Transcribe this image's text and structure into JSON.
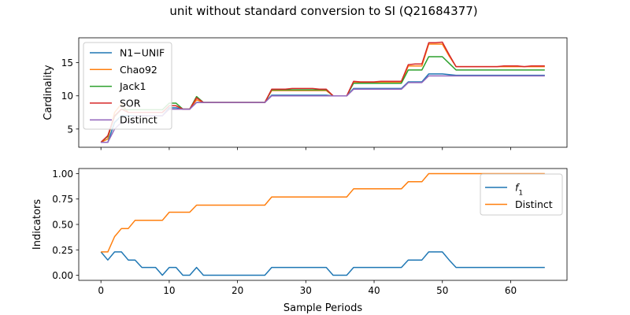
{
  "figure": {
    "title": "unit without standard conversion to SI (Q21684377)"
  },
  "colors": {
    "blue": "#1f77b4",
    "orange": "#ff7f0e",
    "green": "#2ca02c",
    "red": "#d62728",
    "purple": "#9467bd"
  },
  "chart_data": [
    {
      "type": "line",
      "ylabel": "Cardinality",
      "xlim": [
        -3.25,
        68.25
      ],
      "ylim": [
        2.25,
        18.75
      ],
      "xticks": [
        0,
        10,
        20,
        30,
        40,
        50,
        60
      ],
      "yticks": [
        5,
        10,
        15
      ],
      "show_xticklabels": false,
      "grid": false,
      "legend": "upper left",
      "series": [
        {
          "name": "N1−UNIF",
          "color": "#1f77b4",
          "x": [
            0,
            1,
            2,
            3,
            4,
            5,
            6,
            7,
            8,
            9,
            10,
            11,
            12,
            13,
            14,
            15,
            16,
            17,
            18,
            19,
            20,
            21,
            22,
            23,
            24,
            25,
            26,
            27,
            28,
            29,
            30,
            31,
            32,
            33,
            34,
            35,
            36,
            37,
            38,
            39,
            40,
            41,
            42,
            43,
            44,
            45,
            46,
            47,
            48,
            49,
            50,
            51,
            52,
            53,
            54,
            55,
            56,
            57,
            58,
            59,
            60,
            61,
            62,
            63,
            64,
            65
          ],
          "y": [
            3,
            3,
            6,
            7,
            7,
            7,
            7,
            7,
            7,
            7,
            8.2,
            8.2,
            8,
            8,
            9,
            9,
            9,
            9,
            9,
            9,
            9,
            9,
            9,
            9,
            9,
            10.1,
            10.1,
            10.1,
            10.1,
            10.1,
            10.1,
            10.1,
            10.1,
            10.1,
            10,
            10,
            10,
            11.1,
            11.1,
            11.1,
            11.1,
            11.1,
            11.1,
            11.1,
            11.1,
            12.1,
            12.1,
            12.1,
            13.3,
            13.3,
            13.3,
            13.2,
            13.1,
            13.1,
            13.1,
            13.1,
            13.1,
            13.1,
            13.1,
            13.1,
            13.1,
            13.1,
            13.1,
            13.1,
            13.1,
            13.1
          ]
        },
        {
          "name": "Chao92",
          "color": "#ff7f0e",
          "x": [
            0,
            1,
            2,
            3,
            4,
            5,
            6,
            7,
            8,
            9,
            10,
            11,
            12,
            13,
            14,
            15,
            16,
            17,
            18,
            19,
            20,
            21,
            22,
            23,
            24,
            25,
            26,
            27,
            28,
            29,
            30,
            31,
            32,
            33,
            34,
            35,
            36,
            37,
            38,
            39,
            40,
            41,
            42,
            43,
            44,
            45,
            46,
            47,
            48,
            49,
            50,
            51,
            52,
            53,
            54,
            55,
            56,
            57,
            58,
            59,
            60,
            61,
            62,
            63,
            64,
            65
          ],
          "y": [
            3,
            3.5,
            7.5,
            8.8,
            7.5,
            7.5,
            7.5,
            7.5,
            7.5,
            7.5,
            8.5,
            8.5,
            8,
            8,
            9.4,
            9,
            9,
            9,
            9,
            9,
            9,
            9,
            9,
            9,
            9,
            10.8,
            10.8,
            10.8,
            10.8,
            10.8,
            10.8,
            10.8,
            10.8,
            10.8,
            10,
            10,
            10,
            12,
            12,
            12,
            12,
            12,
            12,
            12,
            12,
            14.5,
            14.5,
            14.5,
            17.8,
            17.8,
            17.8,
            16,
            14.4,
            14.4,
            14.4,
            14.4,
            14.4,
            14.4,
            14.4,
            14.4,
            14.4,
            14.4,
            14.4,
            14.4,
            14.4,
            14.4
          ]
        },
        {
          "name": "Jack1",
          "color": "#2ca02c",
          "x": [
            0,
            1,
            2,
            3,
            4,
            5,
            6,
            7,
            8,
            9,
            10,
            11,
            12,
            13,
            14,
            15,
            16,
            17,
            18,
            19,
            20,
            21,
            22,
            23,
            24,
            25,
            26,
            27,
            28,
            29,
            30,
            31,
            32,
            33,
            34,
            35,
            36,
            37,
            38,
            39,
            40,
            41,
            42,
            43,
            44,
            45,
            46,
            47,
            48,
            49,
            50,
            51,
            52,
            53,
            54,
            55,
            56,
            57,
            58,
            59,
            60,
            61,
            62,
            63,
            64,
            65
          ],
          "y": [
            3,
            3.9,
            6.9,
            8,
            7.9,
            7.9,
            7.9,
            7.9,
            7.9,
            7.9,
            8.9,
            8.9,
            8,
            8,
            9.9,
            9,
            9,
            9,
            9,
            9,
            9,
            9,
            9,
            9,
            9,
            10.9,
            10.9,
            10.9,
            10.9,
            10.9,
            10.9,
            10.9,
            10.9,
            10.9,
            10,
            10,
            10,
            11.9,
            11.9,
            11.9,
            11.9,
            11.9,
            11.9,
            11.9,
            11.9,
            13.9,
            13.9,
            13.9,
            15.9,
            15.9,
            15.9,
            14.9,
            13.9,
            13.9,
            13.9,
            13.9,
            13.9,
            13.9,
            13.9,
            13.9,
            13.9,
            13.9,
            13.9,
            13.9,
            13.9,
            13.9
          ]
        },
        {
          "name": "SOR",
          "color": "#d62728",
          "x": [
            0,
            1,
            2,
            3,
            4,
            5,
            6,
            7,
            8,
            9,
            10,
            11,
            12,
            13,
            14,
            15,
            16,
            17,
            18,
            19,
            20,
            21,
            22,
            23,
            24,
            25,
            26,
            27,
            28,
            29,
            30,
            31,
            32,
            33,
            34,
            35,
            36,
            37,
            38,
            39,
            40,
            41,
            42,
            43,
            44,
            45,
            46,
            47,
            48,
            49,
            50,
            51,
            52,
            53,
            54,
            55,
            56,
            57,
            58,
            59,
            60,
            61,
            62,
            63,
            64,
            65
          ],
          "y": [
            3,
            4,
            7,
            8,
            7.5,
            7.5,
            7.5,
            7.5,
            7.5,
            7.5,
            8.5,
            8.5,
            8,
            8,
            9.7,
            9,
            9,
            9,
            9,
            9,
            9,
            9,
            9,
            9,
            9,
            11,
            11,
            11,
            11.1,
            11.1,
            11.1,
            11.1,
            11,
            11,
            10,
            10,
            10,
            12.2,
            12.1,
            12.1,
            12.1,
            12.2,
            12.2,
            12.2,
            12.2,
            14.7,
            14.8,
            14.8,
            18,
            18,
            18.1,
            16.2,
            14.4,
            14.4,
            14.4,
            14.4,
            14.4,
            14.4,
            14.4,
            14.5,
            14.5,
            14.5,
            14.4,
            14.5,
            14.5,
            14.5
          ]
        },
        {
          "name": "Distinct",
          "color": "#9467bd",
          "x": [
            0,
            1,
            2,
            3,
            4,
            5,
            6,
            7,
            8,
            9,
            10,
            11,
            12,
            13,
            14,
            15,
            16,
            17,
            18,
            19,
            20,
            21,
            22,
            23,
            24,
            25,
            26,
            27,
            28,
            29,
            30,
            31,
            32,
            33,
            34,
            35,
            36,
            37,
            38,
            39,
            40,
            41,
            42,
            43,
            44,
            45,
            46,
            47,
            48,
            49,
            50,
            51,
            52,
            53,
            54,
            55,
            56,
            57,
            58,
            59,
            60,
            61,
            62,
            63,
            64,
            65
          ],
          "y": [
            3,
            3,
            5,
            6,
            6,
            7,
            7,
            7,
            7,
            7,
            8,
            8,
            8,
            8,
            9,
            9,
            9,
            9,
            9,
            9,
            9,
            9,
            9,
            9,
            9,
            10,
            10,
            10,
            10,
            10,
            10,
            10,
            10,
            10,
            10,
            10,
            10,
            11,
            11,
            11,
            11,
            11,
            11,
            11,
            11,
            12,
            12,
            12,
            13,
            13,
            13,
            13,
            13,
            13,
            13,
            13,
            13,
            13,
            13,
            13,
            13,
            13,
            13,
            13,
            13,
            13
          ]
        }
      ]
    },
    {
      "type": "line",
      "xlabel": "Sample Periods",
      "ylabel": "Indicators",
      "xlim": [
        -3.25,
        68.25
      ],
      "ylim": [
        -0.05,
        1.05
      ],
      "xticks": [
        0,
        10,
        20,
        30,
        40,
        50,
        60
      ],
      "yticks": [
        0.0,
        0.25,
        0.5,
        0.75,
        1.0
      ],
      "ytick_labels": [
        "0.00",
        "0.25",
        "0.50",
        "0.75",
        "1.00"
      ],
      "grid": false,
      "legend": "upper right",
      "series": [
        {
          "name": "f",
          "name_subscript": "1",
          "color": "#1f77b4",
          "x": [
            0,
            1,
            2,
            3,
            4,
            5,
            6,
            7,
            8,
            9,
            10,
            11,
            12,
            13,
            14,
            15,
            16,
            17,
            18,
            19,
            20,
            21,
            22,
            23,
            24,
            25,
            26,
            27,
            28,
            29,
            30,
            31,
            32,
            33,
            34,
            35,
            36,
            37,
            38,
            39,
            40,
            41,
            42,
            43,
            44,
            45,
            46,
            47,
            48,
            49,
            50,
            51,
            52,
            53,
            54,
            55,
            56,
            57,
            58,
            59,
            60,
            61,
            62,
            63,
            64,
            65
          ],
          "y": [
            0.23,
            0.15,
            0.23,
            0.23,
            0.15,
            0.15,
            0.077,
            0.077,
            0.077,
            0,
            0.077,
            0.077,
            0,
            0,
            0.077,
            0,
            0,
            0,
            0,
            0,
            0,
            0,
            0,
            0,
            0,
            0.077,
            0.077,
            0.077,
            0.077,
            0.077,
            0.077,
            0.077,
            0.077,
            0.077,
            0,
            0,
            0,
            0.077,
            0.077,
            0.077,
            0.077,
            0.077,
            0.077,
            0.077,
            0.077,
            0.15,
            0.15,
            0.15,
            0.23,
            0.23,
            0.23,
            0.15,
            0.077,
            0.077,
            0.077,
            0.077,
            0.077,
            0.077,
            0.077,
            0.077,
            0.077,
            0.077,
            0.077,
            0.077,
            0.077,
            0.077
          ]
        },
        {
          "name": "Distinct",
          "color": "#ff7f0e",
          "x": [
            0,
            1,
            2,
            3,
            4,
            5,
            6,
            7,
            8,
            9,
            10,
            11,
            12,
            13,
            14,
            15,
            16,
            17,
            18,
            19,
            20,
            21,
            22,
            23,
            24,
            25,
            26,
            27,
            28,
            29,
            30,
            31,
            32,
            33,
            34,
            35,
            36,
            37,
            38,
            39,
            40,
            41,
            42,
            43,
            44,
            45,
            46,
            47,
            48,
            49,
            50,
            51,
            52,
            53,
            54,
            55,
            56,
            57,
            58,
            59,
            60,
            61,
            62,
            63,
            64,
            65
          ],
          "y": [
            0.23,
            0.23,
            0.38,
            0.46,
            0.46,
            0.54,
            0.54,
            0.54,
            0.54,
            0.54,
            0.62,
            0.62,
            0.62,
            0.62,
            0.69,
            0.69,
            0.69,
            0.69,
            0.69,
            0.69,
            0.69,
            0.69,
            0.69,
            0.69,
            0.69,
            0.77,
            0.77,
            0.77,
            0.77,
            0.77,
            0.77,
            0.77,
            0.77,
            0.77,
            0.77,
            0.77,
            0.77,
            0.85,
            0.85,
            0.85,
            0.85,
            0.85,
            0.85,
            0.85,
            0.85,
            0.92,
            0.92,
            0.92,
            1,
            1,
            1,
            1,
            1,
            1,
            1,
            1,
            1,
            1,
            1,
            1,
            1,
            1,
            1,
            1,
            1,
            1
          ]
        }
      ]
    }
  ]
}
